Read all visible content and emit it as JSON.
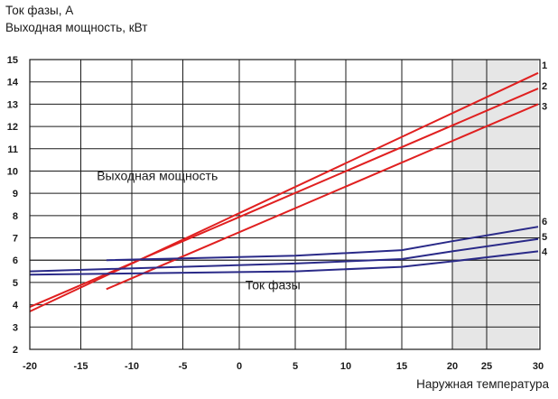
{
  "chart_data": {
    "type": "line",
    "ylabel_lines": [
      "Ток фазы, А",
      "Выходная мощность, кВт"
    ],
    "xlabel": "Наружная температура",
    "x_ticks": [
      "-20",
      "-15",
      "-10",
      "-5",
      "0",
      "5",
      "10",
      "15",
      "20",
      "25",
      "30"
    ],
    "y_ticks": [
      "2",
      "3",
      "4",
      "5",
      "6",
      "7",
      "8",
      "9",
      "10",
      "11",
      "12",
      "13",
      "14",
      "15"
    ],
    "x_tick_values": [
      -20,
      -15,
      -10,
      -5,
      0,
      5,
      10,
      15,
      20,
      25,
      30
    ],
    "ylim": [
      2,
      15
    ],
    "grid": true,
    "shaded_region": {
      "x_from": 20,
      "x_to": 30,
      "color": "#e6e6e6"
    },
    "annotations": [
      {
        "text": "Выходная мощность",
        "x": -7.5,
        "y": 9.6
      },
      {
        "text": "Ток фазы",
        "x": 3,
        "y": 4.7
      }
    ],
    "series": [
      {
        "name": "1",
        "group": "power",
        "color": "#e02020",
        "x": [
          -20,
          30
        ],
        "y": [
          3.7,
          14.4
        ]
      },
      {
        "name": "2",
        "group": "power",
        "color": "#e02020",
        "x": [
          -20,
          30
        ],
        "y": [
          3.9,
          13.7
        ]
      },
      {
        "name": "3",
        "group": "power",
        "color": "#e02020",
        "x": [
          -12.5,
          30
        ],
        "y": [
          4.7,
          13.0
        ]
      },
      {
        "name": "4",
        "group": "current",
        "color": "#2a2a88",
        "x": [
          -20,
          5,
          15,
          20,
          30
        ],
        "y": [
          5.35,
          5.5,
          5.7,
          5.95,
          6.4
        ]
      },
      {
        "name": "5",
        "group": "current",
        "color": "#2a2a88",
        "x": [
          -20,
          5,
          15,
          20,
          30
        ],
        "y": [
          5.5,
          5.85,
          6.05,
          6.4,
          6.95
        ]
      },
      {
        "name": "6",
        "group": "current",
        "color": "#2a2a88",
        "x": [
          -12.5,
          5,
          15,
          20,
          30
        ],
        "y": [
          6.0,
          6.2,
          6.45,
          6.85,
          7.5
        ]
      }
    ],
    "reference_line": {
      "y": 6.0,
      "x": [
        -20,
        30
      ],
      "color": "#333333"
    }
  }
}
